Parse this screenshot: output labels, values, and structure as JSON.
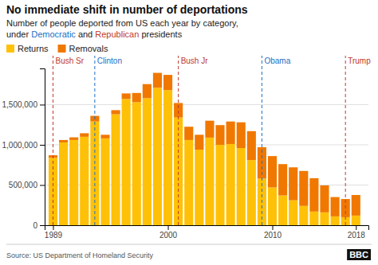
{
  "chart_data": {
    "type": "bar",
    "stacked": true,
    "title": "No immediate shift in number of deportations",
    "subtitle": "Number of people deported from US each year by category,",
    "subtitle_parts": [
      {
        "text": "under ",
        "color": "#222222"
      },
      {
        "text": "Democratic",
        "color": "#1a6fc4"
      },
      {
        "text": " and ",
        "color": "#222222"
      },
      {
        "text": "Republican",
        "color": "#c0392b"
      },
      {
        "text": " presidents",
        "color": "#222222"
      }
    ],
    "source": "Source: US Department of Homeland Security",
    "logo": "BBC",
    "x": [
      1989,
      1990,
      1991,
      1992,
      1993,
      1994,
      1995,
      1996,
      1997,
      1998,
      1999,
      2000,
      2001,
      2002,
      2003,
      2004,
      2005,
      2006,
      2007,
      2008,
      2009,
      2010,
      2011,
      2012,
      2013,
      2014,
      2015,
      2016,
      2017,
      2018
    ],
    "series": [
      {
        "name": "Returns",
        "color": "#FFC107",
        "values": [
          840000,
          1030000,
          1060000,
          1100000,
          1290000,
          1080000,
          1380000,
          1570000,
          1530000,
          1580000,
          1710000,
          1680000,
          1340000,
          1060000,
          940000,
          1090000,
          1000000,
          1010000,
          960000,
          810000,
          580000,
          470000,
          370000,
          310000,
          240000,
          170000,
          160000,
          110000,
          100000,
          120000
        ]
      },
      {
        "name": "Removals",
        "color": "#F07800",
        "values": [
          30000,
          30000,
          33000,
          44000,
          70000,
          45000,
          51000,
          69000,
          115000,
          175000,
          185000,
          190000,
          180000,
          165000,
          185000,
          210000,
          245000,
          280000,
          320000,
          360000,
          390000,
          390000,
          390000,
          410000,
          435000,
          415000,
          335000,
          240000,
          226000,
          256000
        ]
      }
    ],
    "annotations": [
      {
        "text": "Bush Sr",
        "x": 1989,
        "color": "#c0392b"
      },
      {
        "text": "Clinton",
        "x": 1993,
        "color": "#1a6fc4"
      },
      {
        "text": "Bush Jr",
        "x": 2001,
        "color": "#c0392b"
      },
      {
        "text": "Obama",
        "x": 2009,
        "color": "#1a6fc4"
      },
      {
        "text": "Trump",
        "x": 2017,
        "color": "#c0392b"
      }
    ],
    "xlim": [
      1988.2,
      2019.2
    ],
    "xticks": [
      1989,
      2000,
      2010,
      2018
    ],
    "ylim": [
      0,
      1950000
    ],
    "yticks": [
      0,
      {
        "value": 500000,
        "label": "500,000"
      },
      {
        "value": 1000000,
        "label": "1,000,000"
      },
      {
        "value": 1500000,
        "label": "1,500,000"
      }
    ],
    "grid": true,
    "legend": "upper left"
  }
}
